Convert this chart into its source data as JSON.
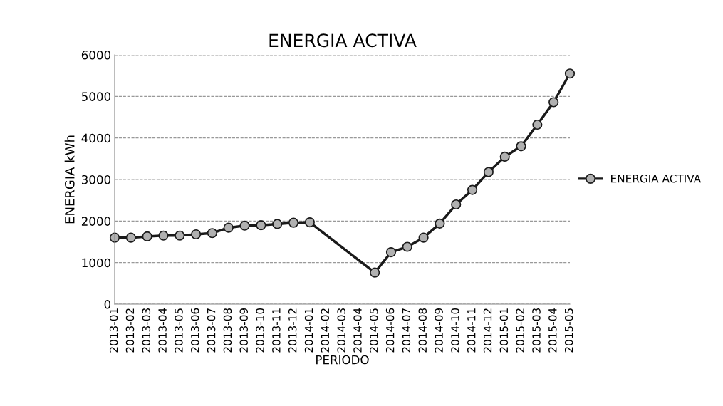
{
  "chart_data": {
    "type": "line",
    "title": "ENERGIA ACTIVA",
    "xlabel": "PERIODO",
    "ylabel": "ENERGIA kWh",
    "categories": [
      "2013-01",
      "2013-02",
      "2013-03",
      "2013-04",
      "2013-05",
      "2013-06",
      "2013-07",
      "2013-08",
      "2013-09",
      "2013-10",
      "2013-11",
      "2013-12",
      "2014-01",
      "2014-02",
      "2014-03",
      "2014-04",
      "2014-05",
      "2014-06",
      "2014-07",
      "2014-08",
      "2014-09",
      "2014-10",
      "2014-11",
      "2014-12",
      "2015-01",
      "2015-02",
      "2015-03",
      "2015-04",
      "2015-05"
    ],
    "series": [
      {
        "name": "ENERGIA ACTIVA",
        "color": "#1a1a1a",
        "values": [
          1600,
          1600,
          1630,
          1650,
          1650,
          1680,
          1710,
          1840,
          1890,
          1900,
          1930,
          1960,
          1970,
          null,
          null,
          null,
          760,
          1250,
          1380,
          1600,
          1940,
          2400,
          2750,
          3180,
          3550,
          3800,
          4320,
          4860,
          5550
        ]
      }
    ],
    "ylim": [
      0,
      6000
    ],
    "yticks": [
      0,
      1000,
      2000,
      3000,
      4000,
      5000,
      6000
    ],
    "grid": "y",
    "legend": "right",
    "marker": "circle",
    "line_style": "solid"
  }
}
